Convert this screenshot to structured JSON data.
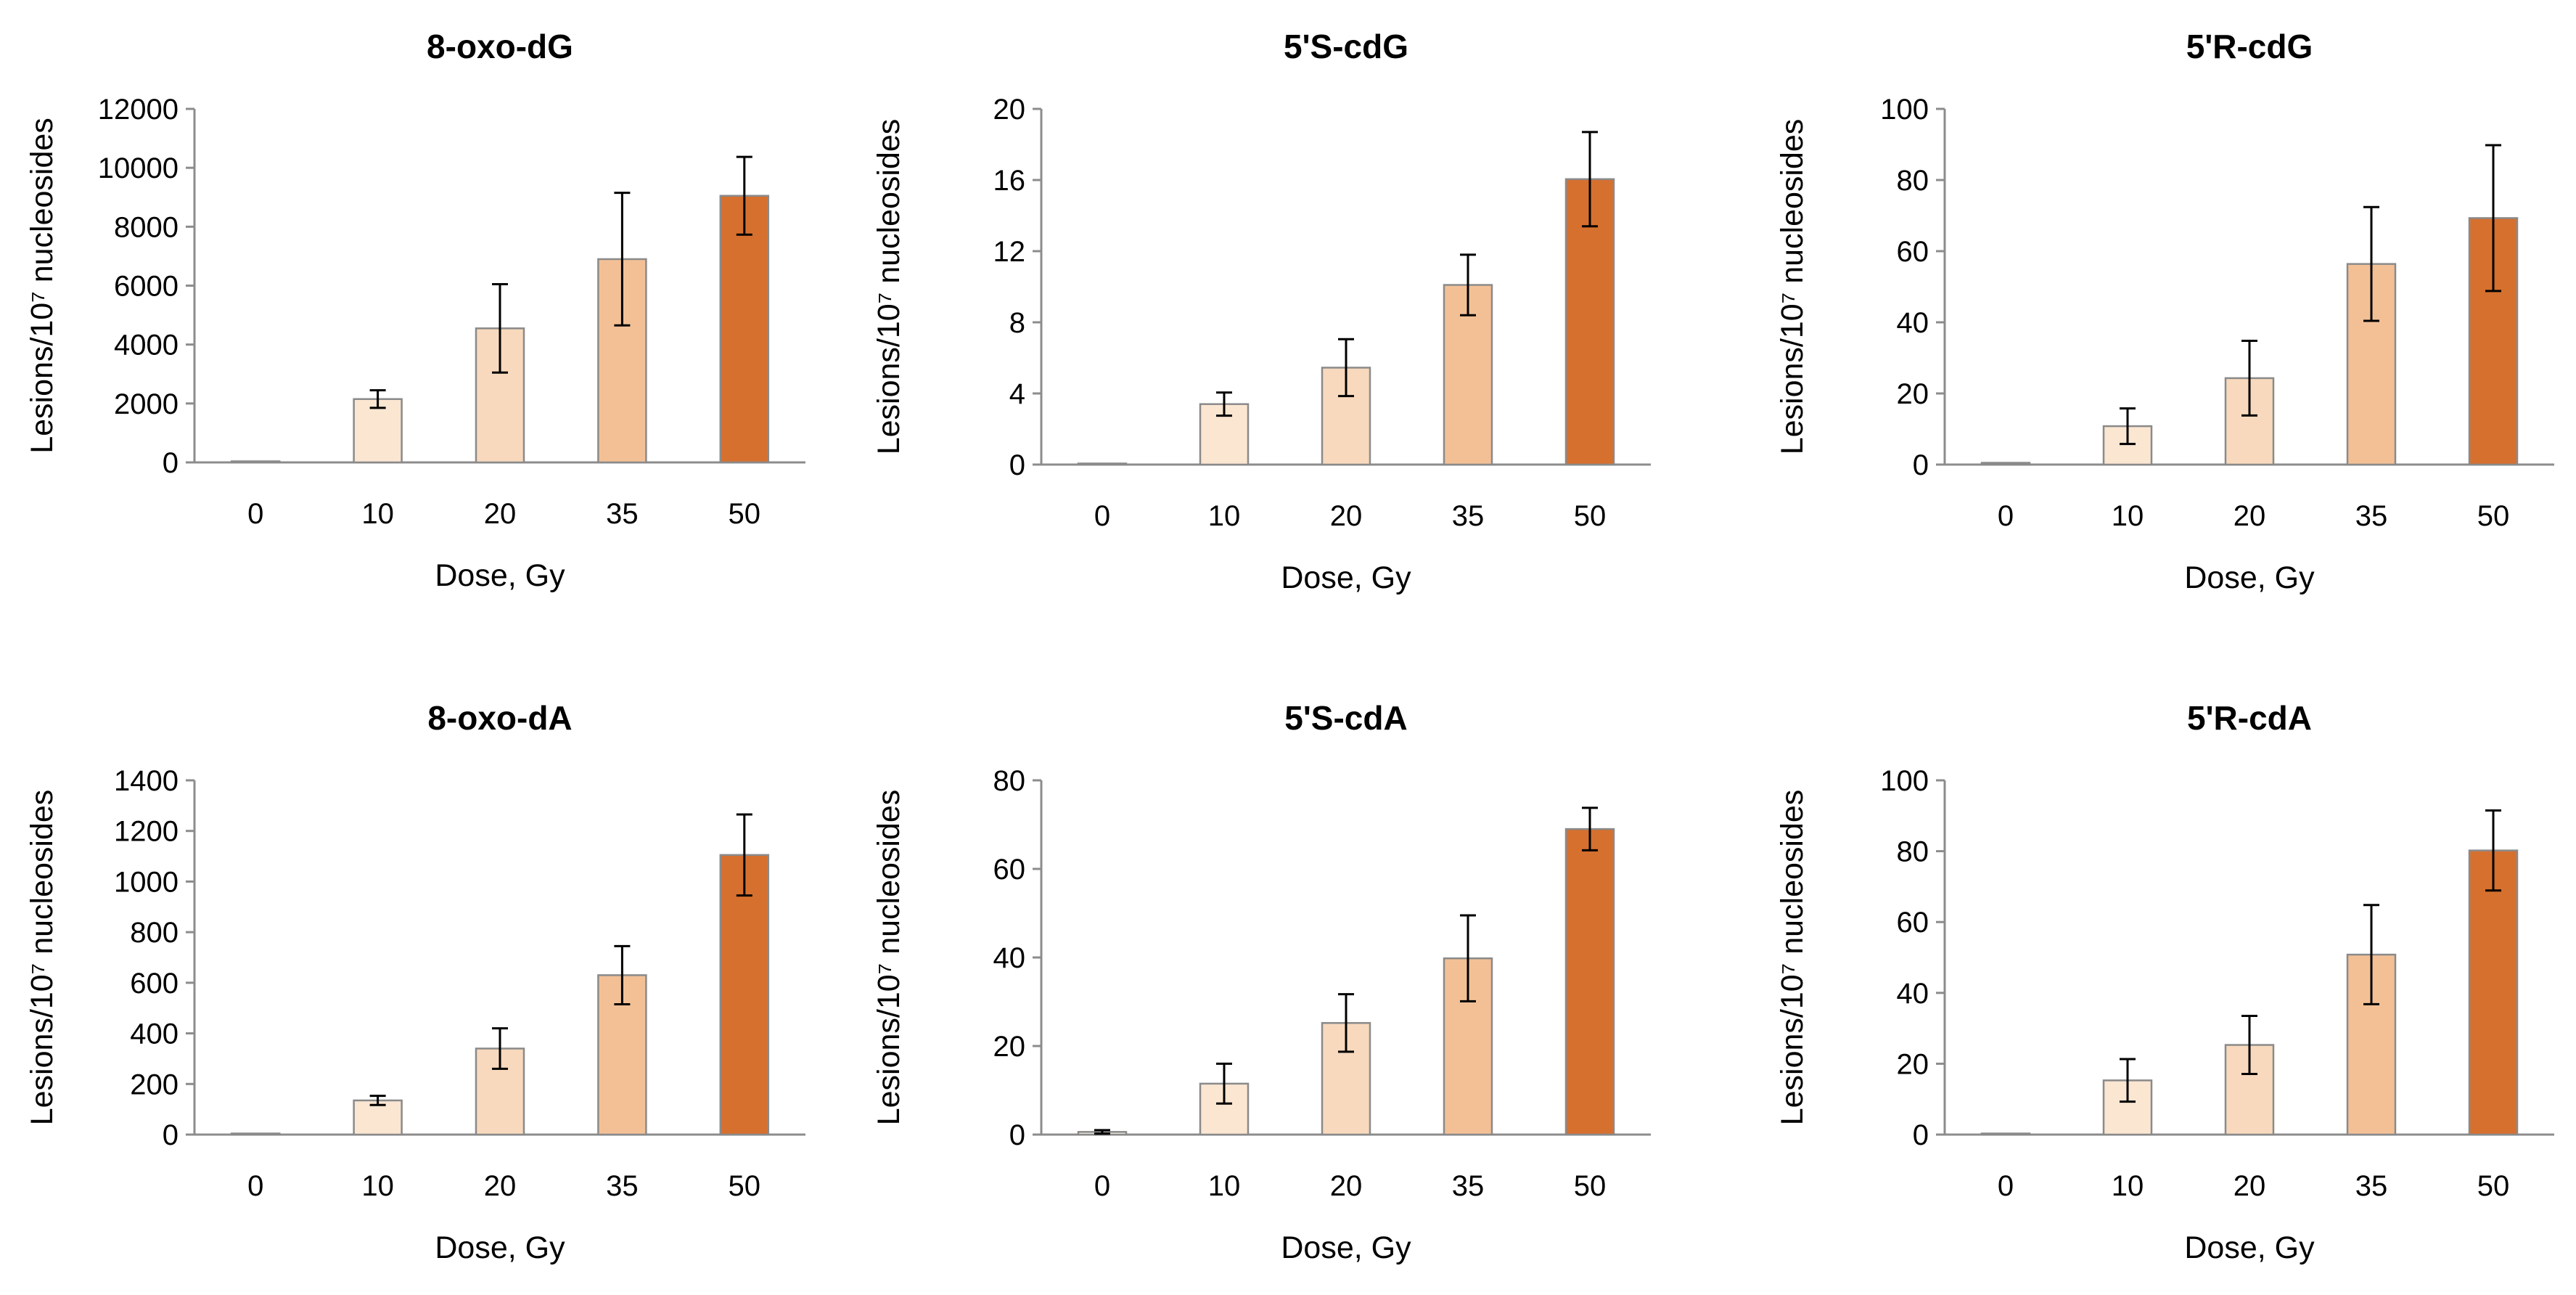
{
  "chart_data": [
    {
      "type": "bar",
      "title": "8-oxo-dG",
      "xlabel": "Dose, Gy",
      "ylabel": "Lesions/10⁷ nucleosides",
      "categories": [
        "0",
        "10",
        "20",
        "35",
        "50"
      ],
      "values": [
        30,
        2150,
        4550,
        6900,
        9050
      ],
      "errors": [
        0,
        300,
        1500,
        2250,
        1320
      ],
      "ylim": [
        0,
        12000
      ],
      "yticks": [
        0,
        2000,
        4000,
        6000,
        8000,
        10000,
        12000
      ],
      "grid": false
    },
    {
      "type": "bar",
      "title": "5'S-cdG",
      "xlabel": "Dose, Gy",
      "ylabel": "Lesions/10⁷ nucleosides",
      "categories": [
        "0",
        "10",
        "20",
        "35",
        "50"
      ],
      "values": [
        0.05,
        3.4,
        5.45,
        10.1,
        16.05
      ],
      "errors": [
        0,
        0.65,
        1.6,
        1.7,
        2.65
      ],
      "ylim": [
        0,
        20
      ],
      "yticks": [
        0,
        4,
        8,
        12,
        16,
        20
      ],
      "grid": false
    },
    {
      "type": "bar",
      "title": "5'R-cdG",
      "xlabel": "Dose, Gy",
      "ylabel": "Lesions/10⁷ nucleosides",
      "categories": [
        "0",
        "10",
        "20",
        "35",
        "50"
      ],
      "values": [
        0.5,
        10.8,
        24.3,
        56.4,
        69.3
      ],
      "errors": [
        0,
        5,
        10.5,
        16,
        20.5
      ],
      "ylim": [
        0,
        100
      ],
      "yticks": [
        0,
        20,
        40,
        60,
        80,
        100
      ],
      "grid": false
    },
    {
      "type": "bar",
      "title": "8-oxo-dA",
      "xlabel": "Dose, Gy",
      "ylabel": "Lesions/10⁷ nucleosides",
      "categories": [
        "0",
        "10",
        "20",
        "35",
        "50"
      ],
      "values": [
        3,
        135,
        340,
        630,
        1105
      ],
      "errors": [
        0,
        18,
        80,
        115,
        160
      ],
      "ylim": [
        0,
        1400
      ],
      "yticks": [
        0,
        200,
        400,
        600,
        800,
        1000,
        1200,
        1400
      ],
      "grid": false
    },
    {
      "type": "bar",
      "title": "5'S-cdA",
      "xlabel": "Dose, Gy",
      "ylabel": "Lesions/10⁷ nucleosides",
      "categories": [
        "0",
        "10",
        "20",
        "35",
        "50"
      ],
      "values": [
        0.6,
        11.5,
        25.2,
        39.8,
        69
      ],
      "errors": [
        0.4,
        4.5,
        6.5,
        9.7,
        4.8
      ],
      "ylim": [
        0,
        80
      ],
      "yticks": [
        0,
        20,
        40,
        60,
        80
      ],
      "grid": false
    },
    {
      "type": "bar",
      "title": "5'R-cdA",
      "xlabel": "Dose, Gy",
      "ylabel": "Lesions/10⁷ nucleosides",
      "categories": [
        "0",
        "10",
        "20",
        "35",
        "50"
      ],
      "values": [
        0.3,
        15.3,
        25.3,
        50.8,
        80.2
      ],
      "errors": [
        0,
        6,
        8.2,
        14,
        11.3
      ],
      "ylim": [
        0,
        100
      ],
      "yticks": [
        0,
        20,
        40,
        60,
        80,
        100
      ],
      "grid": false
    }
  ],
  "colors": {
    "bars": [
      "#fef4ea",
      "#fbe6d2",
      "#f8d9bd",
      "#f3c096",
      "#d6702f"
    ],
    "axis": "#8c8c8c",
    "error_bar": "#000000",
    "text": "#000000"
  }
}
